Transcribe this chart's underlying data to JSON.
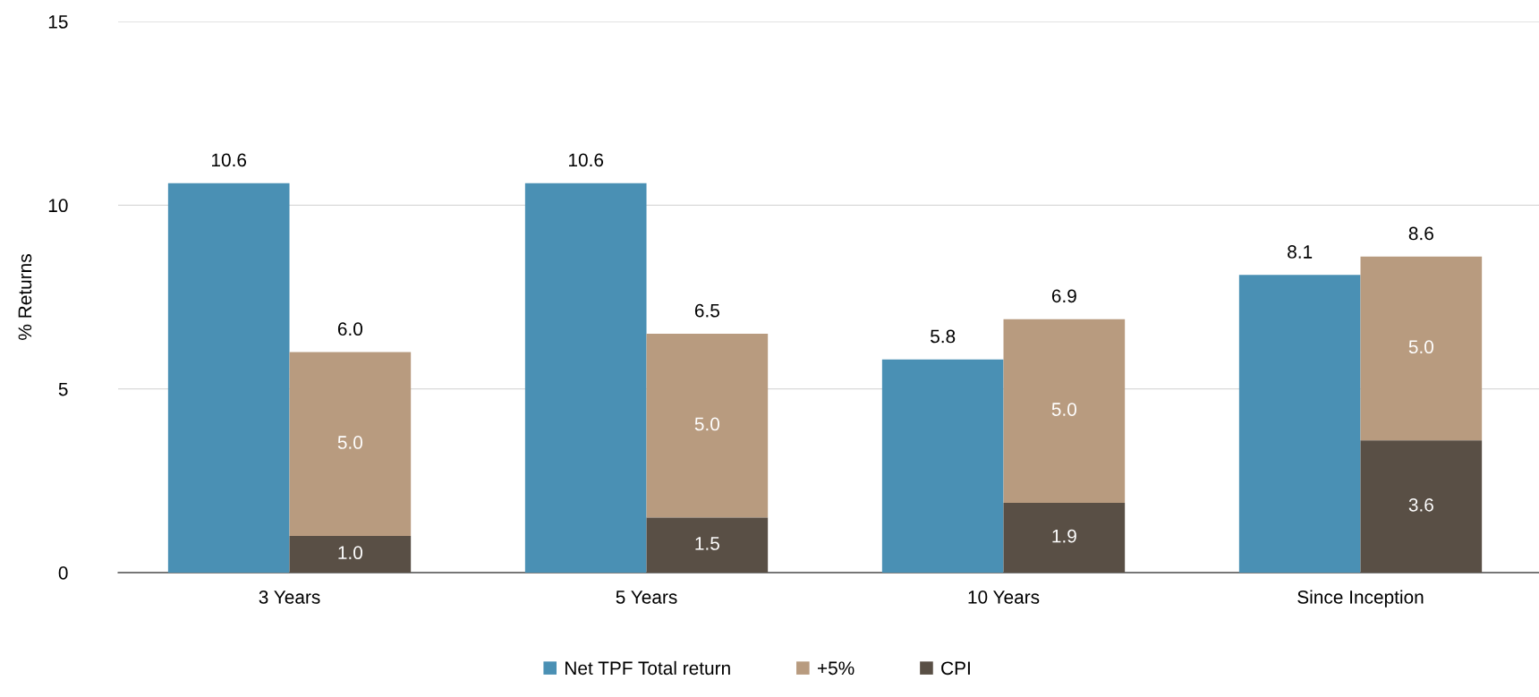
{
  "chart_data": {
    "type": "bar",
    "ylabel": "% Returns",
    "categories": [
      "3 Years",
      "5 Years",
      "10 Years",
      "Since Inception"
    ],
    "series": [
      {
        "name": "Net TPF Total return",
        "color": "#4a90b4",
        "values": [
          10.6,
          10.6,
          5.8,
          8.1
        ],
        "value_labels": [
          "10.6",
          "10.6",
          "5.8",
          "8.1"
        ]
      },
      {
        "name": "+5%",
        "color": "#b89b7f",
        "values": [
          5.0,
          5.0,
          5.0,
          5.0
        ],
        "base": [
          1.0,
          1.5,
          1.9,
          3.6
        ],
        "value_labels": [
          "5.0",
          "5.0",
          "5.0",
          "5.0"
        ]
      },
      {
        "name": "CPI",
        "color": "#594f45",
        "values": [
          1.0,
          1.5,
          1.9,
          3.6
        ],
        "value_labels": [
          "1.0",
          "1.5",
          "1.9",
          "3.6"
        ]
      }
    ],
    "annotations": [
      {
        "text": "6.0",
        "x": "3 Years",
        "y": 6.0
      },
      {
        "text": "6.5",
        "x": "5 Years",
        "y": 6.5
      },
      {
        "text": "6.9",
        "x": "10 Years",
        "y": 6.9
      },
      {
        "text": "8.6",
        "x": "Since Inception",
        "y": 8.6
      }
    ],
    "ylim": [
      0,
      15
    ],
    "yticks": [
      0,
      5,
      10,
      15
    ],
    "grid": "y",
    "legend": "bottom"
  }
}
